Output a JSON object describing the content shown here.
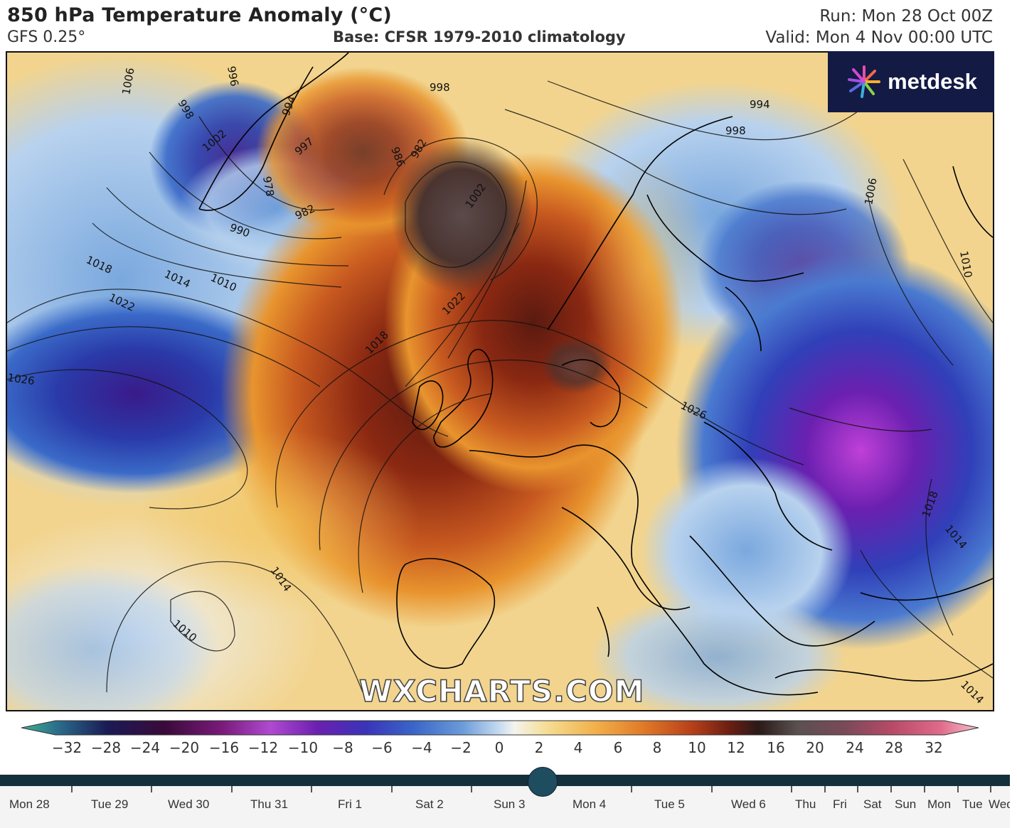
{
  "header": {
    "title": "850 hPa Temperature Anomaly (°C)",
    "model": "GFS 0.25°",
    "base": "Base: CFSR 1979-2010 climatology",
    "run": "Run: Mon 28 Oct 00Z",
    "valid": "Valid: Mon 4 Nov 00:00 UTC"
  },
  "logo": {
    "text": "metdesk",
    "background": "#131a44"
  },
  "watermark": "WXCHARTS.COM",
  "isobar_labels": [
    "1006",
    "998",
    "1002",
    "996",
    "994",
    "997",
    "978",
    "982",
    "990",
    "986",
    "998",
    "982",
    "1002",
    "1018",
    "1014",
    "1010",
    "1022",
    "1026",
    "1022",
    "1018",
    "1026",
    "994",
    "998",
    "1006",
    "1010",
    "1018",
    "1014",
    "1014",
    "1010",
    "1014",
    "1014"
  ],
  "colorbar": {
    "labels": [
      "−32",
      "−28",
      "−24",
      "−20",
      "−16",
      "−12",
      "−10",
      "−8",
      "−6",
      "−4",
      "−2",
      "0",
      "2",
      "4",
      "6",
      "8",
      "10",
      "12",
      "16",
      "20",
      "24",
      "28",
      "32"
    ],
    "colors": [
      "#3fb28f",
      "#2a4a7a",
      "#1a1a55",
      "#3a0a3a",
      "#7a1a7a",
      "#b04ad0",
      "#6a1fb0",
      "#4030b0",
      "#3050c0",
      "#4a80d0",
      "#8ab8e8",
      "#eef2f6",
      "#f5e2a0",
      "#f2b04a",
      "#e07a28",
      "#b8401a",
      "#6a1e12",
      "#2a1a18",
      "#5a5050",
      "#9a5a6a",
      "#c04a6a",
      "#e06a8a",
      "#f4b0c0"
    ]
  },
  "timeline": {
    "days": [
      "Mon 28",
      "Tue 29",
      "Wed 30",
      "Thu 31",
      "Fri 1",
      "Sat 2",
      "Sun 3",
      "Mon 4",
      "Tue 5",
      "Wed 6",
      "Thu",
      "Fri",
      "Sat",
      "Sun",
      "Mon",
      "Tue",
      "Wed"
    ],
    "selected": "Mon 4"
  }
}
